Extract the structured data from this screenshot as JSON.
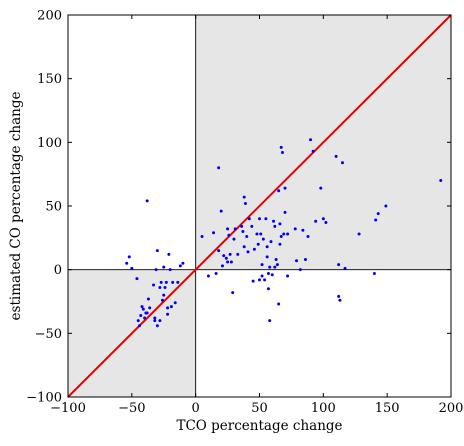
{
  "chart_data": {
    "type": "scatter",
    "title": "",
    "xlabel": "TCO percentage change",
    "ylabel": "estimated CO percentage change",
    "xlim": [
      -100,
      200
    ],
    "ylim": [
      -100,
      200
    ],
    "xticks": [
      -100,
      -50,
      0,
      50,
      100,
      150,
      200
    ],
    "yticks": [
      -100,
      -50,
      0,
      50,
      100,
      150,
      200
    ],
    "xtick_labels": [
      "−100",
      "−50",
      "0",
      "50",
      "100",
      "150",
      "200"
    ],
    "ytick_labels": [
      "−100",
      "−50",
      "0",
      "50",
      "100",
      "150",
      "200"
    ],
    "grid": false,
    "shaded_quadrants": [
      {
        "x": [
          0,
          200
        ],
        "y": [
          0,
          200
        ]
      },
      {
        "x": [
          -100,
          0
        ],
        "y": [
          -100,
          0
        ]
      }
    ],
    "shade_color": "#e6e6e6",
    "reference_line": {
      "x": [
        -100,
        200
      ],
      "y": [
        -100,
        200
      ],
      "color": "#e60000"
    },
    "series": [
      {
        "color": "#0000ee",
        "points": [
          [
            -54,
            5
          ],
          [
            -52,
            10
          ],
          [
            -50,
            1
          ],
          [
            -46,
            -7
          ],
          [
            -45,
            -40
          ],
          [
            -44,
            -44
          ],
          [
            -43,
            -36
          ],
          [
            -42,
            -29
          ],
          [
            -41,
            -31
          ],
          [
            -40,
            -38
          ],
          [
            -39,
            -34
          ],
          [
            -38,
            -34
          ],
          [
            -38,
            54
          ],
          [
            -37,
            -23
          ],
          [
            -36,
            -30
          ],
          [
            -33,
            -12
          ],
          [
            -32,
            -38
          ],
          [
            -32,
            -40
          ],
          [
            -31,
            0
          ],
          [
            -30,
            15
          ],
          [
            -30,
            -44
          ],
          [
            -28,
            -14
          ],
          [
            -28,
            -40
          ],
          [
            -27,
            -10
          ],
          [
            -26,
            -24
          ],
          [
            -25,
            -20
          ],
          [
            -25,
            2
          ],
          [
            -24,
            -14
          ],
          [
            -23,
            -10
          ],
          [
            -22,
            -35
          ],
          [
            -22,
            -30
          ],
          [
            -21,
            12
          ],
          [
            -20,
            0
          ],
          [
            -19,
            -29
          ],
          [
            -18,
            -10
          ],
          [
            -16,
            -26
          ],
          [
            -14,
            -10
          ],
          [
            -12,
            3
          ],
          [
            -10,
            5
          ],
          [
            5,
            26
          ],
          [
            10,
            -5
          ],
          [
            14,
            29
          ],
          [
            16,
            -3
          ],
          [
            18,
            15
          ],
          [
            18,
            80
          ],
          [
            20,
            46
          ],
          [
            21,
            3
          ],
          [
            22,
            11
          ],
          [
            24,
            9
          ],
          [
            25,
            6
          ],
          [
            25,
            32
          ],
          [
            26,
            27
          ],
          [
            27,
            12
          ],
          [
            28,
            6
          ],
          [
            29,
            -18
          ],
          [
            30,
            24
          ],
          [
            31,
            32
          ],
          [
            33,
            12
          ],
          [
            36,
            34
          ],
          [
            37,
            30
          ],
          [
            38,
            18
          ],
          [
            38,
            57
          ],
          [
            39,
            52
          ],
          [
            40,
            26
          ],
          [
            41,
            14
          ],
          [
            42,
            40
          ],
          [
            44,
            34
          ],
          [
            45,
            -9
          ],
          [
            46,
            16
          ],
          [
            48,
            28
          ],
          [
            49,
            20
          ],
          [
            50,
            -8
          ],
          [
            50,
            40
          ],
          [
            51,
            28
          ],
          [
            52,
            -5
          ],
          [
            52,
            4
          ],
          [
            53,
            24
          ],
          [
            54,
            -8
          ],
          [
            55,
            40
          ],
          [
            56,
            10
          ],
          [
            56,
            18
          ],
          [
            57,
            -3
          ],
          [
            57,
            -15
          ],
          [
            58,
            -40
          ],
          [
            58,
            2
          ],
          [
            59,
            22
          ],
          [
            60,
            -4
          ],
          [
            61,
            38
          ],
          [
            62,
            2
          ],
          [
            62,
            34
          ],
          [
            63,
            8
          ],
          [
            64,
            4
          ],
          [
            65,
            -27
          ],
          [
            65,
            62
          ],
          [
            66,
            20
          ],
          [
            66,
            36
          ],
          [
            67,
            26
          ],
          [
            67,
            96
          ],
          [
            68,
            92
          ],
          [
            69,
            28
          ],
          [
            70,
            45
          ],
          [
            70,
            64
          ],
          [
            72,
            28
          ],
          [
            72,
            -5
          ],
          [
            78,
            32
          ],
          [
            79,
            7
          ],
          [
            82,
            0
          ],
          [
            84,
            31
          ],
          [
            86,
            8
          ],
          [
            88,
            26
          ],
          [
            90,
            102
          ],
          [
            92,
            93
          ],
          [
            94,
            38
          ],
          [
            98,
            64
          ],
          [
            100,
            40
          ],
          [
            102,
            37
          ],
          [
            110,
            89
          ],
          [
            112,
            4
          ],
          [
            112,
            -21
          ],
          [
            113,
            -24
          ],
          [
            115,
            84
          ],
          [
            117,
            1
          ],
          [
            128,
            28
          ],
          [
            140,
            -3
          ],
          [
            141,
            39
          ],
          [
            143,
            44
          ],
          [
            149,
            50
          ],
          [
            192,
            70
          ]
        ]
      }
    ]
  }
}
